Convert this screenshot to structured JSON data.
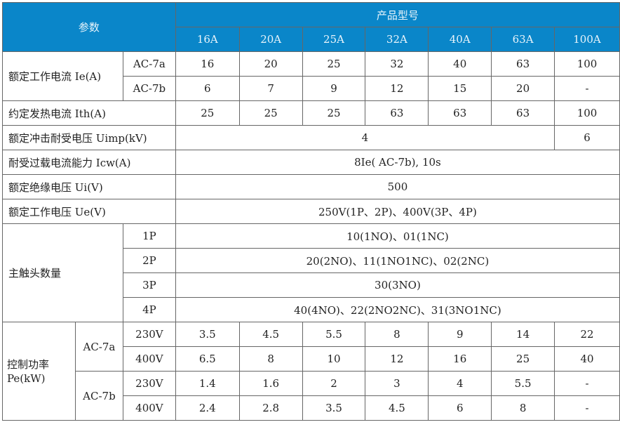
{
  "header": {
    "param_label": "参数",
    "product_label": "产品型号",
    "models": [
      "16A",
      "20A",
      "25A",
      "32A",
      "40A",
      "63A",
      "100A"
    ]
  },
  "colors": {
    "header_bg": "#0a86c9",
    "header_text": "#e8f4fb",
    "border": "#666666"
  },
  "rows": {
    "ie": {
      "label": "额定工作电流 Ie(A)",
      "ac7a": {
        "cat": "AC-7a",
        "values": [
          "16",
          "20",
          "25",
          "32",
          "40",
          "63",
          "100"
        ]
      },
      "ac7b": {
        "cat": "AC-7b",
        "values": [
          "6",
          "7",
          "9",
          "12",
          "15",
          "20",
          "-"
        ]
      }
    },
    "ith": {
      "label": "约定发热电流 Ith(A)",
      "values": [
        "25",
        "25",
        "25",
        "63",
        "63",
        "63",
        "100"
      ]
    },
    "uimp": {
      "label": "额定冲击耐受电压 Uimp(kV)",
      "value_main": "4",
      "value_100a": "6"
    },
    "icw": {
      "label": "耐受过载电流能力 Icw(A)",
      "value": "8Ie( AC-7b), 10s"
    },
    "ui": {
      "label": "额定绝缘电压 Ui(V)",
      "value": "500"
    },
    "ue": {
      "label": "额定工作电压 Ue(V)",
      "value": "250V(1P、2P)、400V(3P、4P)"
    },
    "contacts": {
      "label": "主触头数量",
      "items": [
        {
          "pole": "1P",
          "value": "10(1NO)、01(1NC)"
        },
        {
          "pole": "2P",
          "value": "20(2NO)、11(1NO1NC)、02(2NC)"
        },
        {
          "pole": "3P",
          "value": "30(3NO)"
        },
        {
          "pole": "4P",
          "value": "40(4NO)、22(2NO2NC)、31(3NO1NC)"
        }
      ]
    },
    "power": {
      "label_line1": "控制功率",
      "label_line2": "Pe(kW)",
      "groups": [
        {
          "cat": "AC-7a",
          "rows": [
            {
              "voltage": "230V",
              "values": [
                "3.5",
                "4.5",
                "5.5",
                "8",
                "9",
                "14",
                "22"
              ]
            },
            {
              "voltage": "400V",
              "values": [
                "6.5",
                "8",
                "10",
                "12",
                "16",
                "25",
                "40"
              ]
            }
          ]
        },
        {
          "cat": "AC-7b",
          "rows": [
            {
              "voltage": "230V",
              "values": [
                "1.4",
                "1.6",
                "2",
                "3",
                "4",
                "5.5",
                "-"
              ]
            },
            {
              "voltage": "400V",
              "values": [
                "2.4",
                "2.8",
                "3.5",
                "4.5",
                "6",
                "8",
                "-"
              ]
            }
          ]
        }
      ]
    }
  }
}
